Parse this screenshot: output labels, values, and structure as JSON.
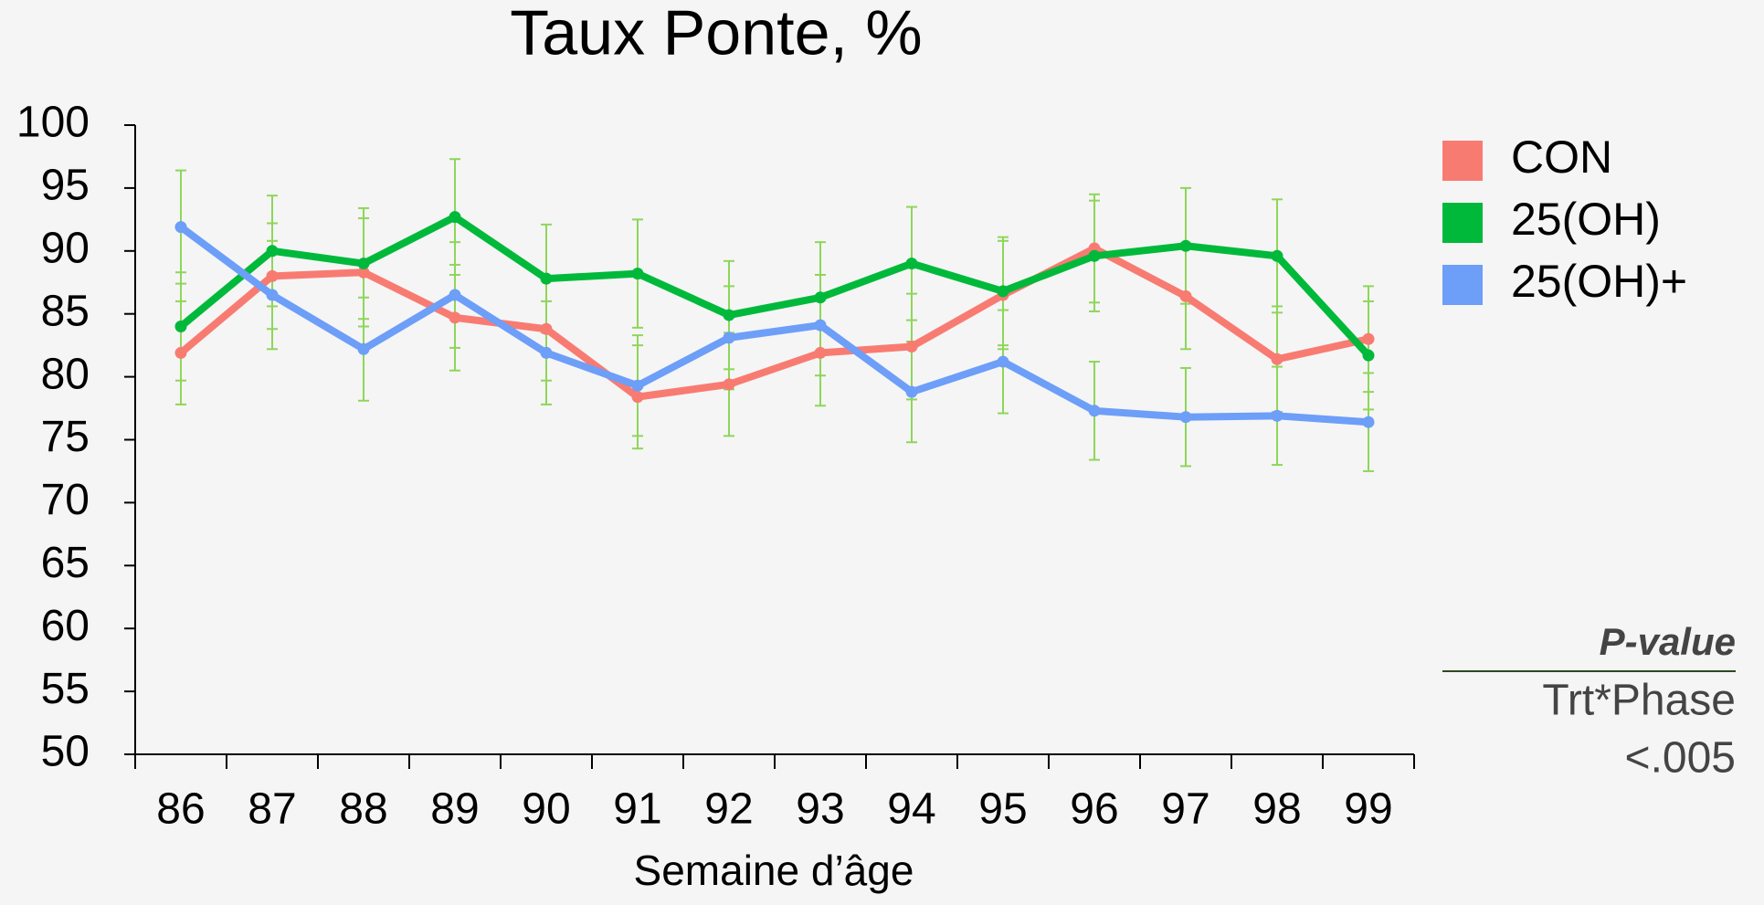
{
  "chart_data": {
    "type": "line",
    "title": "Taux Ponte, %",
    "x_label": "Semaine d’âge",
    "categories": [
      "86",
      "87",
      "88",
      "89",
      "90",
      "91",
      "92",
      "93",
      "94",
      "95",
      "96",
      "97",
      "98",
      "99"
    ],
    "series": [
      {
        "name": "CON",
        "color": "#f87b72",
        "values": [
          81.9,
          88.0,
          88.3,
          84.7,
          83.8,
          78.4,
          79.4,
          81.9,
          82.4,
          86.5,
          90.2,
          86.4,
          81.4,
          83.0
        ],
        "errors": [
          4.1,
          4.2,
          4.3,
          4.2,
          4.1,
          4.1,
          4.1,
          4.2,
          4.2,
          4.3,
          4.3,
          4.2,
          4.2,
          4.2
        ]
      },
      {
        "name": "25(OH)",
        "color": "#00b93b",
        "values": [
          84.0,
          90.0,
          89.0,
          92.7,
          87.8,
          88.2,
          84.9,
          86.3,
          89.0,
          86.8,
          89.6,
          90.4,
          89.6,
          81.7
        ],
        "errors": [
          4.3,
          4.4,
          4.4,
          4.6,
          4.3,
          4.3,
          4.3,
          4.4,
          4.5,
          4.3,
          4.4,
          4.6,
          4.5,
          4.3
        ]
      },
      {
        "name": "25(OH)+",
        "color": "#6d9ef8",
        "values": [
          91.9,
          86.5,
          82.2,
          86.5,
          81.9,
          79.3,
          83.1,
          84.1,
          78.8,
          81.2,
          77.3,
          76.8,
          76.9,
          76.4
        ],
        "errors": [
          4.5,
          4.3,
          4.1,
          4.2,
          4.1,
          4.0,
          4.1,
          4.0,
          4.0,
          4.1,
          3.9,
          3.9,
          3.9,
          3.9
        ]
      }
    ],
    "error_color": "#8ed65a",
    "ylim": [
      50,
      100
    ],
    "yticks": [
      50,
      55,
      60,
      65,
      70,
      75,
      80,
      85,
      90,
      95,
      100
    ],
    "legend": "right",
    "annotation": {
      "title": "P-value",
      "label": "Trt*Phase",
      "value": "<.005"
    }
  }
}
